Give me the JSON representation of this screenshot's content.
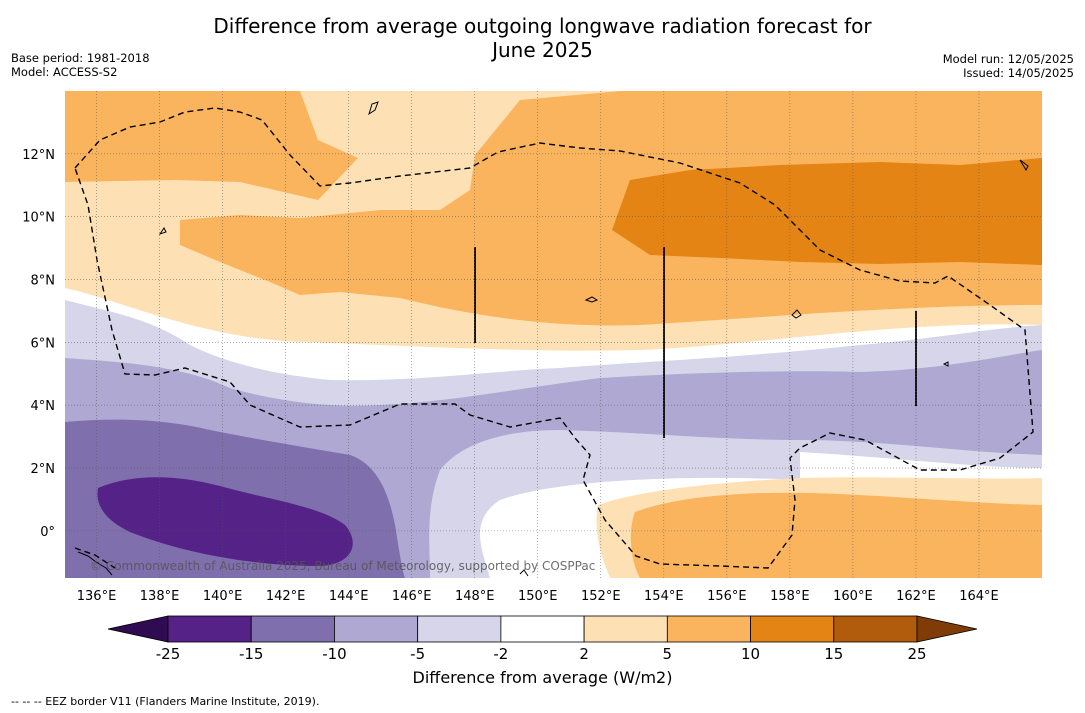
{
  "title_line1": "Difference from average outgoing longwave radiation forecast for",
  "title_line2": "June 2025",
  "base_period": "Base period: 1981-2018",
  "model": "Model: ACCESS-S2",
  "model_run": "Model run: 12/05/2025",
  "issued": "Issued: 14/05/2025",
  "copyright": "© Commonwealth of Australia 2025, Bureau of Meteorology, supported by COSPPac",
  "footnote": "-- -- -- EEZ border V11 (Flanders Marine Institute, 2019).",
  "colorbar": {
    "label": "Difference from average (W/m2)",
    "ticks": [
      "-25",
      "-15",
      "-10",
      "-5",
      "-2",
      "2",
      "5",
      "10",
      "15",
      "25"
    ],
    "colors": [
      "#552288",
      "#7f6fad",
      "#aea8d2",
      "#d6d5e9",
      "#ffffff",
      "#fde1b5",
      "#fbb45e",
      "#e48415",
      "#b15c0c"
    ],
    "extend_low_color": "#2f0b52",
    "extend_high_color": "#7f3c07"
  },
  "map": {
    "lon_range": [
      135,
      166
    ],
    "lat_range": [
      -1.5,
      14
    ],
    "lon_ticks": [
      "136°E",
      "138°E",
      "140°E",
      "142°E",
      "144°E",
      "146°E",
      "148°E",
      "150°E",
      "152°E",
      "154°E",
      "156°E",
      "158°E",
      "160°E",
      "162°E",
      "164°E"
    ],
    "lat_ticks": [
      "0°",
      "2°N",
      "4°N",
      "6°N",
      "8°N",
      "10°N",
      "12°N"
    ],
    "gridlines": true
  }
}
